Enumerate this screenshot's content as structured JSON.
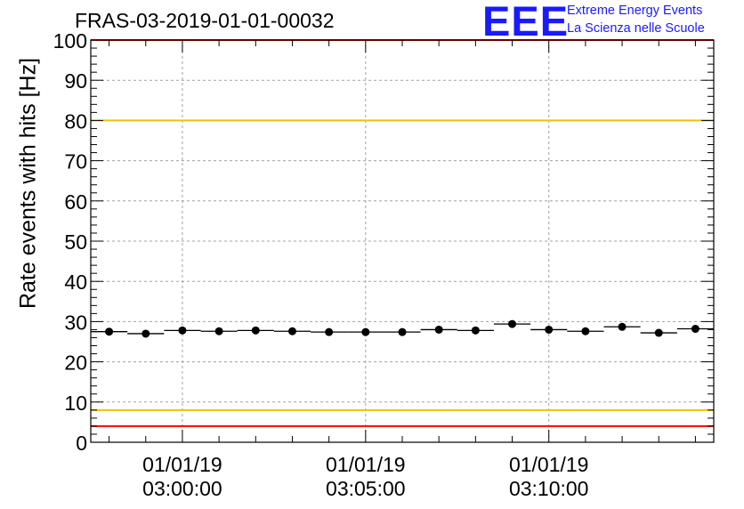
{
  "chart_data": {
    "type": "scatter",
    "title": "FRAS-03-2019-01-01-00032",
    "xlabel": "",
    "ylabel": "Rate events with hits [Hz]",
    "ylim": [
      0,
      100
    ],
    "yticks": [
      0,
      10,
      20,
      30,
      40,
      50,
      60,
      70,
      80,
      90,
      100
    ],
    "xlim": [
      "2019-01-01 02:57:30",
      "2019-01-01 03:14:30"
    ],
    "xticks": [
      {
        "date": "01/01/19",
        "time": "03:00:00",
        "t": "2019-01-01 03:00:00"
      },
      {
        "date": "01/01/19",
        "time": "03:05:00",
        "t": "2019-01-01 03:05:00"
      },
      {
        "date": "01/01/19",
        "time": "03:10:00",
        "t": "2019-01-01 03:10:00"
      }
    ],
    "grid": true,
    "series": [
      {
        "x": [
          "2019-01-01 02:58:00",
          "2019-01-01 02:59:00",
          "2019-01-01 03:00:00",
          "2019-01-01 03:01:00",
          "2019-01-01 03:02:00",
          "2019-01-01 03:03:00",
          "2019-01-01 03:04:00",
          "2019-01-01 03:05:00",
          "2019-01-01 03:06:00",
          "2019-01-01 03:07:00",
          "2019-01-01 03:08:00",
          "2019-01-01 03:09:00",
          "2019-01-01 03:10:00",
          "2019-01-01 03:11:00",
          "2019-01-01 03:12:00",
          "2019-01-01 03:13:00",
          "2019-01-01 03:14:00"
        ],
        "values": [
          27.5,
          27.0,
          27.8,
          27.6,
          27.8,
          27.6,
          27.4,
          27.4,
          27.4,
          28.0,
          27.8,
          29.4,
          28.0,
          27.6,
          28.7,
          27.2,
          28.2
        ]
      }
    ],
    "reference_lines": [
      {
        "value": 100,
        "color": "#ff0000"
      },
      {
        "value": 80,
        "color": "#f2c200"
      },
      {
        "value": 8,
        "color": "#f2c200"
      },
      {
        "value": 4,
        "color": "#ff0000"
      }
    ]
  },
  "logo": {
    "mark": "EEE",
    "line1": "Extreme Energy Events",
    "line2": "La Scienza nelle Scuole",
    "color": "#1a1aff"
  }
}
